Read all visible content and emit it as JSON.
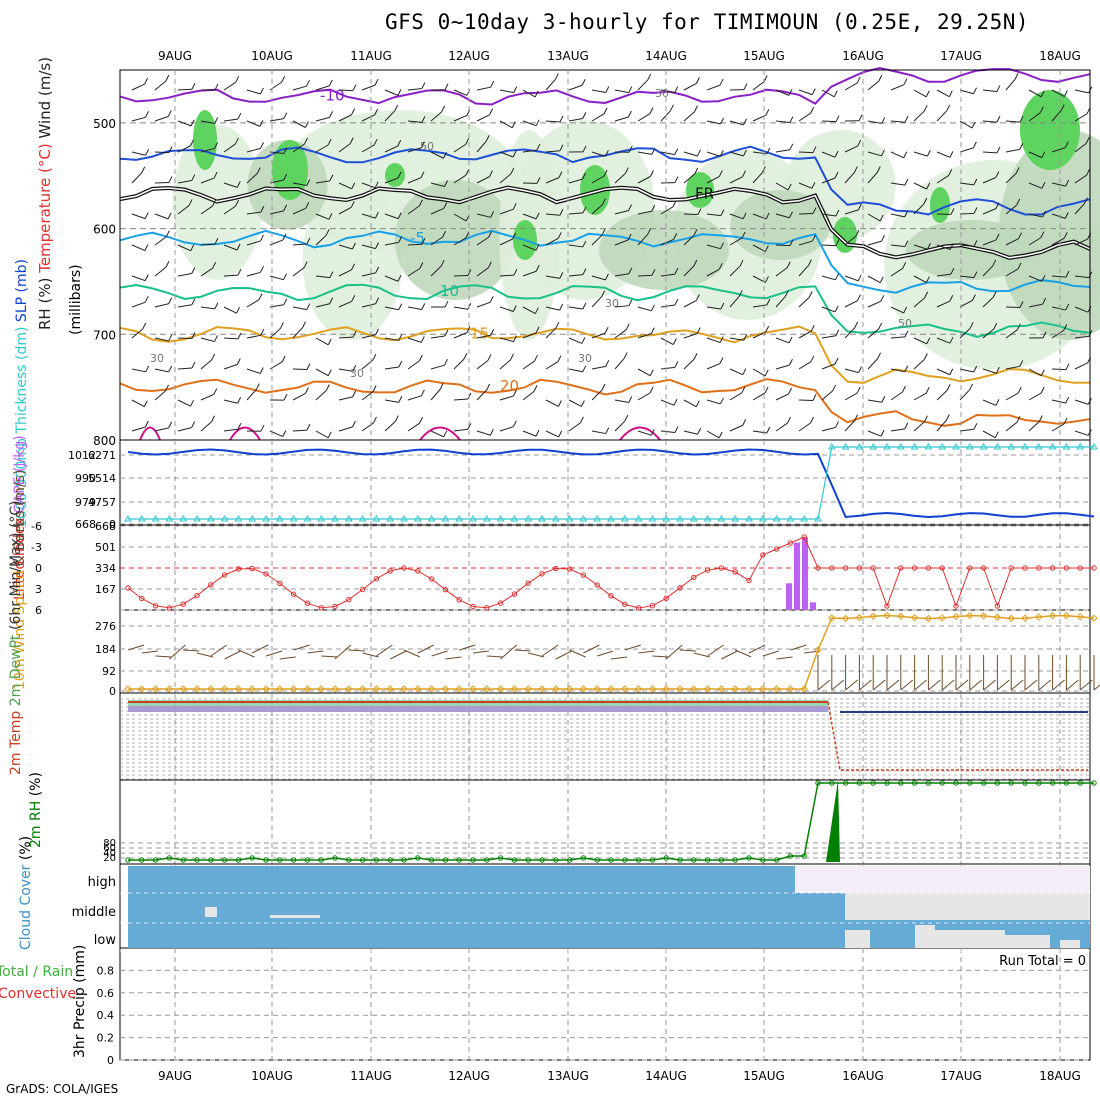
{
  "title": "GFS 0~10day 3-hourly for TIMIMOUN (0.25E, 29.25N)",
  "footer": "GrADS: COLA/IGES",
  "colors": {
    "rh_light": "#dfeedb",
    "rh_mid": "#bfd8bb",
    "rh_dark": "#a4b7a2",
    "rh_green": "#5fd35f",
    "purple": "#8a1fc7",
    "blue_dark": "#1f4fd8",
    "blue": "#18a0e8",
    "teal": "#18c08a",
    "gold": "#e0a020",
    "orange": "#e07018",
    "magenta": "#d0108a",
    "cyan": "#30c8d0",
    "slp": "#1040d0",
    "li": "#e03030",
    "cape": "#c060f0",
    "wind_speed": "#e0a020",
    "temp": "#c84020",
    "dew": "#50a050",
    "rh2m": "#008000",
    "cloud": "#66aad6",
    "cloud_light": "#e6e6e6"
  },
  "chart_data": [
    {
      "type": "heatmap",
      "name": "upper_air",
      "ylabel_parts": [
        "RH (%)",
        "Temperature (°C)",
        "Wind (m/s)"
      ],
      "ylabel2": "(millibars)",
      "ylim": [
        800,
        450
      ],
      "yticks": [
        500,
        600,
        700,
        800
      ],
      "x_dates": [
        "9AUG",
        "10AUG",
        "11AUG",
        "12AUG",
        "13AUG",
        "14AUG",
        "15AUG",
        "16AUG",
        "17AUG",
        "18AUG"
      ],
      "rh_labels": [
        "30",
        "50",
        "30",
        "30",
        "30",
        "50",
        "30"
      ],
      "isotherms": [
        {
          "label": "-10",
          "level_start": 475,
          "level_end": 455
        },
        {
          "label": "",
          "level_start": 530,
          "level_end": 580
        },
        {
          "label": "FR",
          "level_start": 568,
          "level_end": 620
        },
        {
          "label": "-5",
          "level_start": 610,
          "level_end": 655
        },
        {
          "label": "10",
          "level_start": 660,
          "level_end": 695
        },
        {
          "label": "15",
          "level_start": 700,
          "level_end": 740
        },
        {
          "label": "20",
          "level_start": 750,
          "level_end": 780
        }
      ]
    },
    {
      "type": "line",
      "name": "slp_thickness",
      "ylabel_parts": [
        "1000-500mb",
        "Thickness (dm)",
        "SLP (mb)"
      ],
      "yticks_left": [
        "6271",
        "5514",
        "4757",
        "0"
      ],
      "yticks_right": [
        "1012",
        "990",
        "979",
        "668"
      ],
      "slp_start": 1012,
      "slp_end": 979,
      "ylim": [
        668,
        1012
      ]
    },
    {
      "type": "bar",
      "name": "lifted_cape",
      "ylabel_parts": [
        "Lifted Index",
        "CAPE (J/kg)"
      ],
      "yticks_left": [
        "-6",
        "-3",
        "0",
        "3",
        "6"
      ],
      "yticks_right": [
        "668",
        "501",
        "334",
        "167"
      ],
      "cape_bars": [
        {
          "date": "15AUG",
          "value": 210
        },
        {
          "date": "15AUG",
          "value": 530
        },
        {
          "date": "15AUG",
          "value": 571
        },
        {
          "date": "15AUG",
          "value": 60
        }
      ]
    },
    {
      "type": "line",
      "name": "wind10m",
      "ylabel_parts": [
        "10m Wind",
        "Speed",
        "& Barbs",
        "(m/s)"
      ],
      "yticks": [
        "276",
        "184",
        "92",
        "0"
      ],
      "ylim": [
        0,
        300
      ]
    },
    {
      "type": "line",
      "name": "temp2m",
      "ylabel_parts": [
        "2m Temp",
        "2m DewPt",
        "(6hr Min/Max)",
        "(°C)"
      ]
    },
    {
      "type": "line",
      "name": "rh2m",
      "ylabel_parts": [
        "2m RH",
        "(%)"
      ],
      "yticks": [
        "80",
        "60",
        "40",
        "20"
      ]
    },
    {
      "type": "heatmap",
      "name": "cloud_cover",
      "ylabel_parts": [
        "Cloud Cover",
        "(%)"
      ],
      "levels": [
        "high",
        "middle",
        "low"
      ]
    },
    {
      "type": "bar",
      "name": "precip",
      "ylabel_parts": [
        "Total / Rain",
        "Convective",
        "3hr Precip (mm)"
      ],
      "run_total_label": "Run Total = 0",
      "yticks": [
        "0.8",
        "0.6",
        "0.4",
        "0.2",
        "0"
      ],
      "ylim": [
        0,
        1
      ]
    }
  ]
}
